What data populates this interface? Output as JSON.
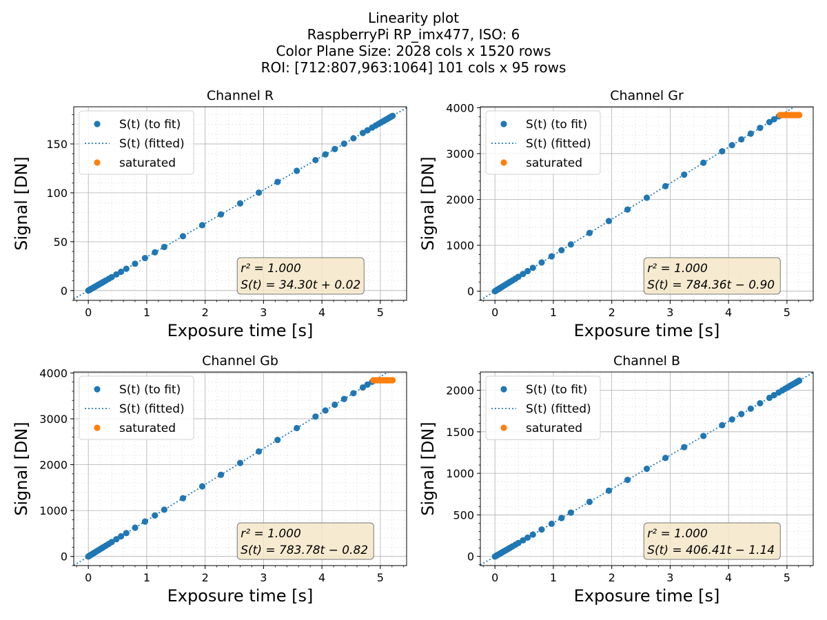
{
  "figure": {
    "title_lines": [
      "Linearity plot",
      "RaspberryPi RP_imx477, ISO: 6",
      "Color Plane Size: 2028 cols x 1520 rows",
      "ROI: [712:807,963:1064] 101 cols x 95 rows"
    ]
  },
  "colors": {
    "fit_points": "#1f77b4",
    "fitted_line": "#1f77b4",
    "saturated": "#ff7f0e",
    "stats_box_fill": "#f5e6c8",
    "grid": "#b0b0b0"
  },
  "legend_labels": [
    "S(t) (to fit)",
    "S(t) (fitted)",
    "saturated"
  ],
  "chart_data": [
    {
      "type": "scatter",
      "title": "Channel R",
      "xlabel": "Exposure time [s]",
      "ylabel": "Signal [DN]",
      "xlim": [
        -0.25,
        5.45
      ],
      "ylim": [
        -10,
        188
      ],
      "xticks": [
        0,
        1,
        2,
        3,
        4,
        5
      ],
      "yticks": [
        0,
        50,
        100,
        150
      ],
      "grid": true,
      "legend": "upper-left",
      "fit": {
        "slope": 34.3,
        "intercept": 0.02,
        "r2": "1.000"
      },
      "stats": {
        "r2_text": "r² = 1.000",
        "eq_text": "S(t) = 34.30t + 0.02"
      },
      "saturation_start": null,
      "saturation_level": null
    },
    {
      "type": "scatter",
      "title": "Channel Gr",
      "xlabel": "Exposure time [s]",
      "ylabel": "Signal [DN]",
      "xlim": [
        -0.25,
        5.45
      ],
      "ylim": [
        -200,
        4020
      ],
      "xticks": [
        0,
        1,
        2,
        3,
        4,
        5
      ],
      "yticks": [
        0,
        1000,
        2000,
        3000,
        4000
      ],
      "grid": true,
      "legend": "upper-left",
      "fit": {
        "slope": 784.36,
        "intercept": -0.9,
        "r2": "1.000"
      },
      "stats": {
        "r2_text": "r² = 1.000",
        "eq_text": "S(t) = 784.36t − 0.90"
      },
      "saturation_start": 4.88,
      "saturation_level": 3840
    },
    {
      "type": "scatter",
      "title": "Channel Gb",
      "xlabel": "Exposure time [s]",
      "ylabel": "Signal [DN]",
      "xlim": [
        -0.25,
        5.45
      ],
      "ylim": [
        -200,
        4020
      ],
      "xticks": [
        0,
        1,
        2,
        3,
        4,
        5
      ],
      "yticks": [
        0,
        1000,
        2000,
        3000,
        4000
      ],
      "grid": true,
      "legend": "upper-left",
      "fit": {
        "slope": 783.78,
        "intercept": -0.82,
        "r2": "1.000"
      },
      "stats": {
        "r2_text": "r² = 1.000",
        "eq_text": "S(t) = 783.78t − 0.82"
      },
      "saturation_start": 4.88,
      "saturation_level": 3840
    },
    {
      "type": "scatter",
      "title": "Channel B",
      "xlabel": "Exposure time [s]",
      "ylabel": "Signal [DN]",
      "xlim": [
        -0.25,
        5.45
      ],
      "ylim": [
        -110,
        2220
      ],
      "xticks": [
        0,
        1,
        2,
        3,
        4,
        5
      ],
      "yticks": [
        0,
        500,
        1000,
        1500,
        2000
      ],
      "grid": true,
      "legend": "upper-left",
      "fit": {
        "slope": 406.41,
        "intercept": -1.14,
        "r2": "1.000"
      },
      "stats": {
        "r2_text": "r² = 1.000",
        "eq_text": "S(t) = 406.41t − 1.14"
      },
      "saturation_start": null,
      "saturation_level": null
    }
  ],
  "exposure_times": [
    0.0,
    0.015,
    0.03,
    0.045,
    0.06,
    0.08,
    0.1,
    0.12,
    0.145,
    0.17,
    0.2,
    0.23,
    0.26,
    0.3,
    0.35,
    0.4,
    0.48,
    0.56,
    0.65,
    0.8,
    0.97,
    1.14,
    1.3,
    1.62,
    1.95,
    2.27,
    2.6,
    2.92,
    3.24,
    3.57,
    3.89,
    4.06,
    4.22,
    4.38,
    4.54,
    4.7,
    4.78,
    4.86,
    4.92,
    4.97,
    5.01,
    5.05,
    5.08,
    5.11,
    5.14,
    5.17,
    5.19,
    5.21
  ],
  "saturated_exposure_times": [
    4.88,
    4.92,
    4.95,
    4.98,
    5.01,
    5.04,
    5.07,
    5.1,
    5.13,
    5.16,
    5.19,
    5.21
  ]
}
